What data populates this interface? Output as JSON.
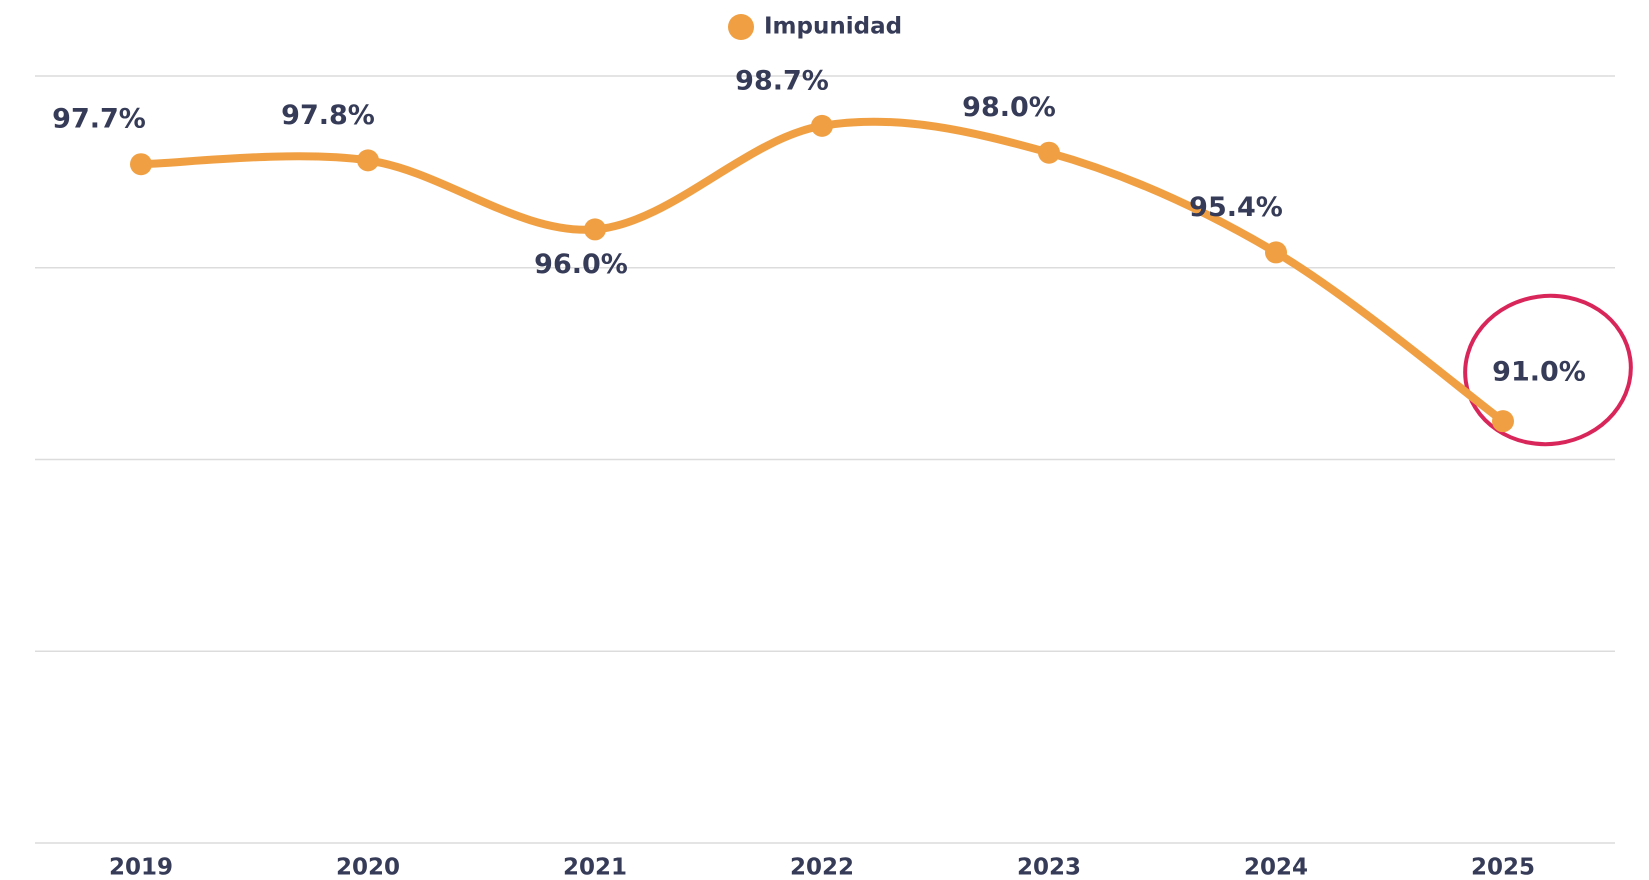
{
  "chart_data": {
    "type": "line",
    "categories": [
      "2019",
      "2020",
      "2021",
      "2022",
      "2023",
      "2024",
      "2025"
    ],
    "series": [
      {
        "name": "Impunidad",
        "color": "#f0a042",
        "values": [
          97.7,
          97.8,
          96.0,
          98.7,
          98.0,
          95.4,
          91.0
        ],
        "value_labels": [
          "97.7%",
          "97.8%",
          "96.0%",
          "98.7%",
          "98.0%",
          "95.4%",
          "91.0%"
        ]
      }
    ],
    "ylim": [
      80,
      100
    ],
    "yticks": [
      80,
      85,
      90,
      95,
      100
    ],
    "grid": true,
    "legend": "top"
  }
}
